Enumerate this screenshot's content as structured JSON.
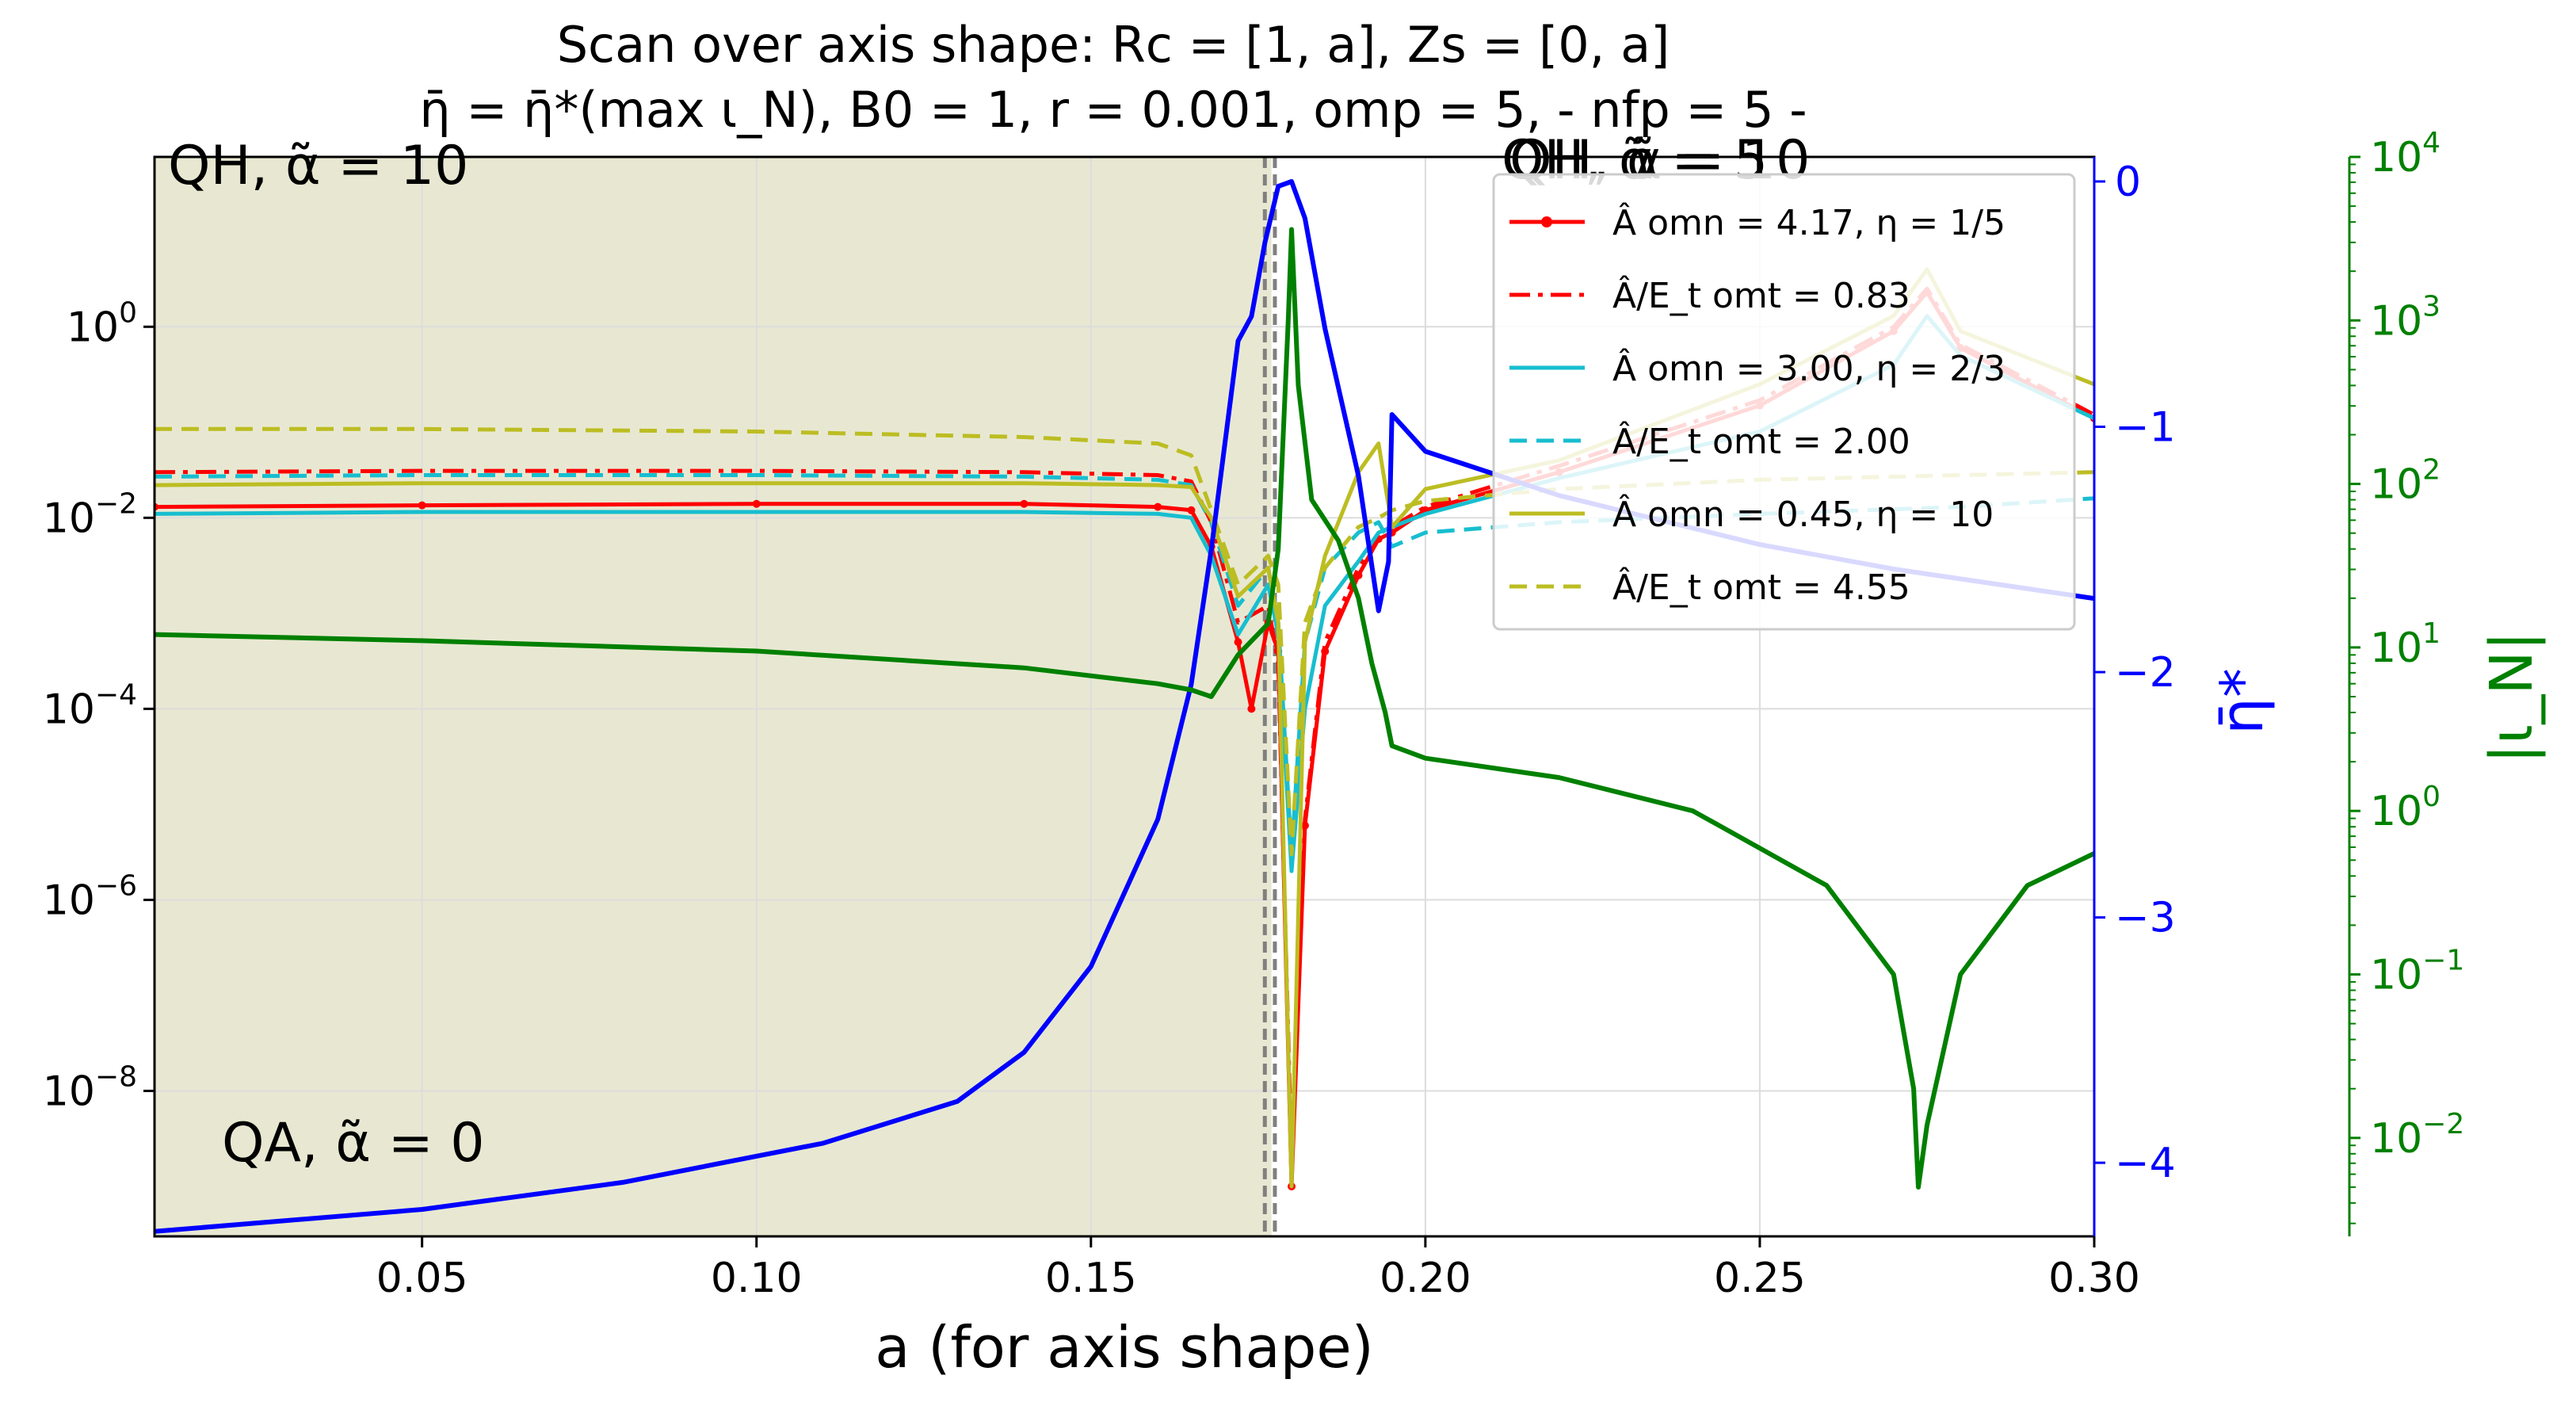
{
  "figure": {
    "title_line1": "Scan over axis shape: Rc = [1, a], Zs = [0, a]",
    "title_line2": "η̄ = η̄*(max ι_N),  B0 = 1, r = 0.001, omp = 5,  - nfp = 5 -",
    "xlabel": "a (for axis shape)",
    "ylabel_right1": "η̄*",
    "ylabel_right2": "|ι_N|",
    "region_labels": {
      "qh_left": "QH, α̃ = 10",
      "qa": "QA, α̃ = 0",
      "qh_right_a": "QH, α̃ = 5",
      "qh_right_b": "QH, α̃ = 10"
    },
    "colors": {
      "red": "#ff0000",
      "cyan": "#17becf",
      "olive": "#bcbd22",
      "blue": "#0000ff",
      "green": "#008000",
      "shade": "#e8e8d2",
      "vline": "#808080"
    }
  },
  "chart_data": {
    "type": "line",
    "x_range": [
      0.01,
      0.3
    ],
    "x_ticks": [
      0.05,
      0.1,
      0.15,
      0.2,
      0.25,
      0.3
    ],
    "x_tick_labels": [
      "0.05",
      "0.10",
      "0.15",
      "0.20",
      "0.25",
      "0.30"
    ],
    "shaded_region": [
      0.01,
      0.177
    ],
    "vertical_dashed_lines": [
      0.176,
      0.1775
    ],
    "left_axis": {
      "scale": "log",
      "range": [
        3e-10,
        60
      ],
      "ticks": [
        1,
        0.01,
        0.0001,
        1e-06,
        1e-08
      ],
      "tick_labels": [
        "10^0",
        "10^-2",
        "10^-4",
        "10^-6",
        "10^-8"
      ]
    },
    "right_axis_eta": {
      "label": "η̄*",
      "range": [
        -4.3,
        0.1
      ],
      "ticks": [
        0,
        -1,
        -2,
        -3,
        -4
      ],
      "tick_labels": [
        "0",
        "−1",
        "−2",
        "−3",
        "−4"
      ]
    },
    "right_axis_iota": {
      "label": "|ι_N|",
      "scale": "log",
      "range": [
        0.0025,
        10000
      ],
      "ticks": [
        10000,
        1000,
        100,
        10,
        1,
        0.1,
        0.01
      ],
      "tick_labels": [
        "10^4",
        "10^3",
        "10^2",
        "10^1",
        "10^0",
        "10^-1",
        "10^-2"
      ]
    },
    "legend": [
      {
        "label": "Â omn = 4.17, η = 1/5",
        "color": "#ff0000",
        "style": "solid-star"
      },
      {
        "label": "Â/E_t omt = 0.83",
        "color": "#ff0000",
        "style": "dashdot"
      },
      {
        "label": "Â omn = 3.00, η = 2/3",
        "color": "#17becf",
        "style": "solid"
      },
      {
        "label": "Â/E_t omt = 2.00",
        "color": "#17becf",
        "style": "dashed"
      },
      {
        "label": "Â omn = 0.45, η = 10",
        "color": "#bcbd22",
        "style": "solid"
      },
      {
        "label": "Â/E_t omt = 4.55",
        "color": "#bcbd22",
        "style": "dashed"
      }
    ],
    "series": [
      {
        "name": "Â omn = 4.17, η = 1/5",
        "axis": "left",
        "color": "#ff0000",
        "style": "solid-star",
        "x": [
          0.01,
          0.05,
          0.1,
          0.14,
          0.16,
          0.165,
          0.168,
          0.172,
          0.174,
          0.1765,
          0.178,
          0.18,
          0.182,
          0.185,
          0.19,
          0.193,
          0.195,
          0.2,
          0.22,
          0.25,
          0.27,
          0.275,
          0.28,
          0.3
        ],
        "y": [
          0.013,
          0.0135,
          0.014,
          0.014,
          0.013,
          0.012,
          0.005,
          0.0005,
          0.0001,
          0.0008,
          0.0004,
          1e-09,
          6e-06,
          0.0004,
          0.0025,
          0.006,
          0.007,
          0.012,
          0.03,
          0.15,
          0.9,
          2.3,
          0.6,
          0.11
        ]
      },
      {
        "name": "Â/E_t omt = 0.83",
        "axis": "left",
        "color": "#ff0000",
        "style": "dashdot",
        "x": [
          0.01,
          0.05,
          0.1,
          0.14,
          0.16,
          0.165,
          0.168,
          0.172,
          0.1765,
          0.178,
          0.18,
          0.182,
          0.185,
          0.19,
          0.193,
          0.195,
          0.2,
          0.22,
          0.25,
          0.27,
          0.275,
          0.28,
          0.3
        ],
        "y": [
          0.03,
          0.031,
          0.031,
          0.03,
          0.028,
          0.024,
          0.009,
          0.0008,
          0.0012,
          0.0003,
          2e-09,
          7e-06,
          0.0005,
          0.003,
          0.007,
          0.008,
          0.013,
          0.035,
          0.17,
          1.0,
          2.5,
          0.65,
          0.12
        ]
      },
      {
        "name": "Â omn = 3.00, η = 2/3",
        "axis": "left",
        "color": "#17becf",
        "style": "solid",
        "x": [
          0.01,
          0.05,
          0.1,
          0.14,
          0.16,
          0.165,
          0.168,
          0.172,
          0.1765,
          0.178,
          0.18,
          0.182,
          0.185,
          0.19,
          0.193,
          0.195,
          0.2,
          0.22,
          0.25,
          0.27,
          0.275,
          0.28,
          0.3
        ],
        "y": [
          0.011,
          0.0115,
          0.0115,
          0.0115,
          0.011,
          0.01,
          0.004,
          0.0006,
          0.002,
          0.0006,
          2e-06,
          0.0001,
          0.0012,
          0.0035,
          0.007,
          0.008,
          0.011,
          0.026,
          0.08,
          0.4,
          1.3,
          0.5,
          0.11
        ]
      },
      {
        "name": "Â/E_t omt = 2.00",
        "axis": "left",
        "color": "#17becf",
        "style": "dashed",
        "x": [
          0.01,
          0.05,
          0.1,
          0.14,
          0.16,
          0.165,
          0.168,
          0.172,
          0.1765,
          0.178,
          0.18,
          0.182,
          0.185,
          0.19,
          0.193,
          0.195,
          0.2,
          0.22,
          0.25,
          0.28,
          0.3
        ],
        "y": [
          0.027,
          0.028,
          0.028,
          0.027,
          0.025,
          0.022,
          0.009,
          0.0012,
          0.003,
          0.0008,
          3e-06,
          0.0005,
          0.003,
          0.007,
          0.009,
          0.005,
          0.007,
          0.009,
          0.011,
          0.013,
          0.016
        ]
      },
      {
        "name": "Â omn = 0.45, η = 10",
        "axis": "left",
        "color": "#bcbd22",
        "style": "solid",
        "x": [
          0.01,
          0.05,
          0.1,
          0.14,
          0.16,
          0.165,
          0.168,
          0.172,
          0.1765,
          0.178,
          0.18,
          0.182,
          0.185,
          0.19,
          0.193,
          0.195,
          0.2,
          0.22,
          0.25,
          0.27,
          0.275,
          0.28,
          0.3
        ],
        "y": [
          0.022,
          0.023,
          0.023,
          0.023,
          0.022,
          0.021,
          0.01,
          0.0015,
          0.003,
          0.0008,
          1e-09,
          0.0005,
          0.004,
          0.03,
          0.06,
          0.008,
          0.02,
          0.04,
          0.25,
          1.3,
          4.0,
          0.9,
          0.25
        ]
      },
      {
        "name": "Â/E_t omt = 4.55",
        "axis": "left",
        "color": "#bcbd22",
        "style": "dashed",
        "x": [
          0.01,
          0.05,
          0.1,
          0.14,
          0.16,
          0.165,
          0.168,
          0.172,
          0.1765,
          0.178,
          0.18,
          0.182,
          0.185,
          0.19,
          0.193,
          0.195,
          0.2,
          0.22,
          0.25,
          0.28,
          0.3
        ],
        "y": [
          0.085,
          0.085,
          0.08,
          0.07,
          0.06,
          0.045,
          0.012,
          0.002,
          0.004,
          0.002,
          3e-06,
          0.0008,
          0.003,
          0.008,
          0.01,
          0.012,
          0.015,
          0.02,
          0.025,
          0.028,
          0.03
        ]
      },
      {
        "name": "η̄*",
        "axis": "right_eta",
        "color": "#0000ff",
        "style": "solid",
        "x": [
          0.01,
          0.05,
          0.08,
          0.11,
          0.13,
          0.14,
          0.15,
          0.16,
          0.165,
          0.168,
          0.172,
          0.174,
          0.176,
          0.178,
          0.18,
          0.182,
          0.185,
          0.19,
          0.193,
          0.1945,
          0.195,
          0.2,
          0.22,
          0.25,
          0.27,
          0.3
        ],
        "y": [
          -4.28,
          -4.19,
          -4.08,
          -3.92,
          -3.75,
          -3.55,
          -3.2,
          -2.6,
          -2.05,
          -1.5,
          -0.65,
          -0.55,
          -0.25,
          -0.02,
          0.0,
          -0.15,
          -0.6,
          -1.2,
          -1.75,
          -1.55,
          -0.95,
          -1.1,
          -1.28,
          -1.48,
          -1.58,
          -1.7
        ]
      },
      {
        "name": "|ι_N|",
        "axis": "right_iota",
        "color": "#008000",
        "style": "solid",
        "x": [
          0.01,
          0.05,
          0.1,
          0.14,
          0.16,
          0.165,
          0.168,
          0.172,
          0.1765,
          0.178,
          0.1795,
          0.18,
          0.181,
          0.183,
          0.187,
          0.19,
          0.192,
          0.194,
          0.195,
          0.2,
          0.22,
          0.24,
          0.26,
          0.27,
          0.273,
          0.2737,
          0.275,
          0.28,
          0.29,
          0.3
        ],
        "y": [
          12.0,
          11.0,
          9.5,
          7.5,
          6.0,
          5.5,
          5.0,
          9.0,
          14.0,
          40.0,
          1000.0,
          3600.0,
          400.0,
          80.0,
          45.0,
          20.0,
          8.0,
          4.0,
          2.5,
          2.1,
          1.6,
          1.0,
          0.35,
          0.1,
          0.02,
          0.005,
          0.012,
          0.1,
          0.35,
          0.55
        ]
      }
    ]
  }
}
